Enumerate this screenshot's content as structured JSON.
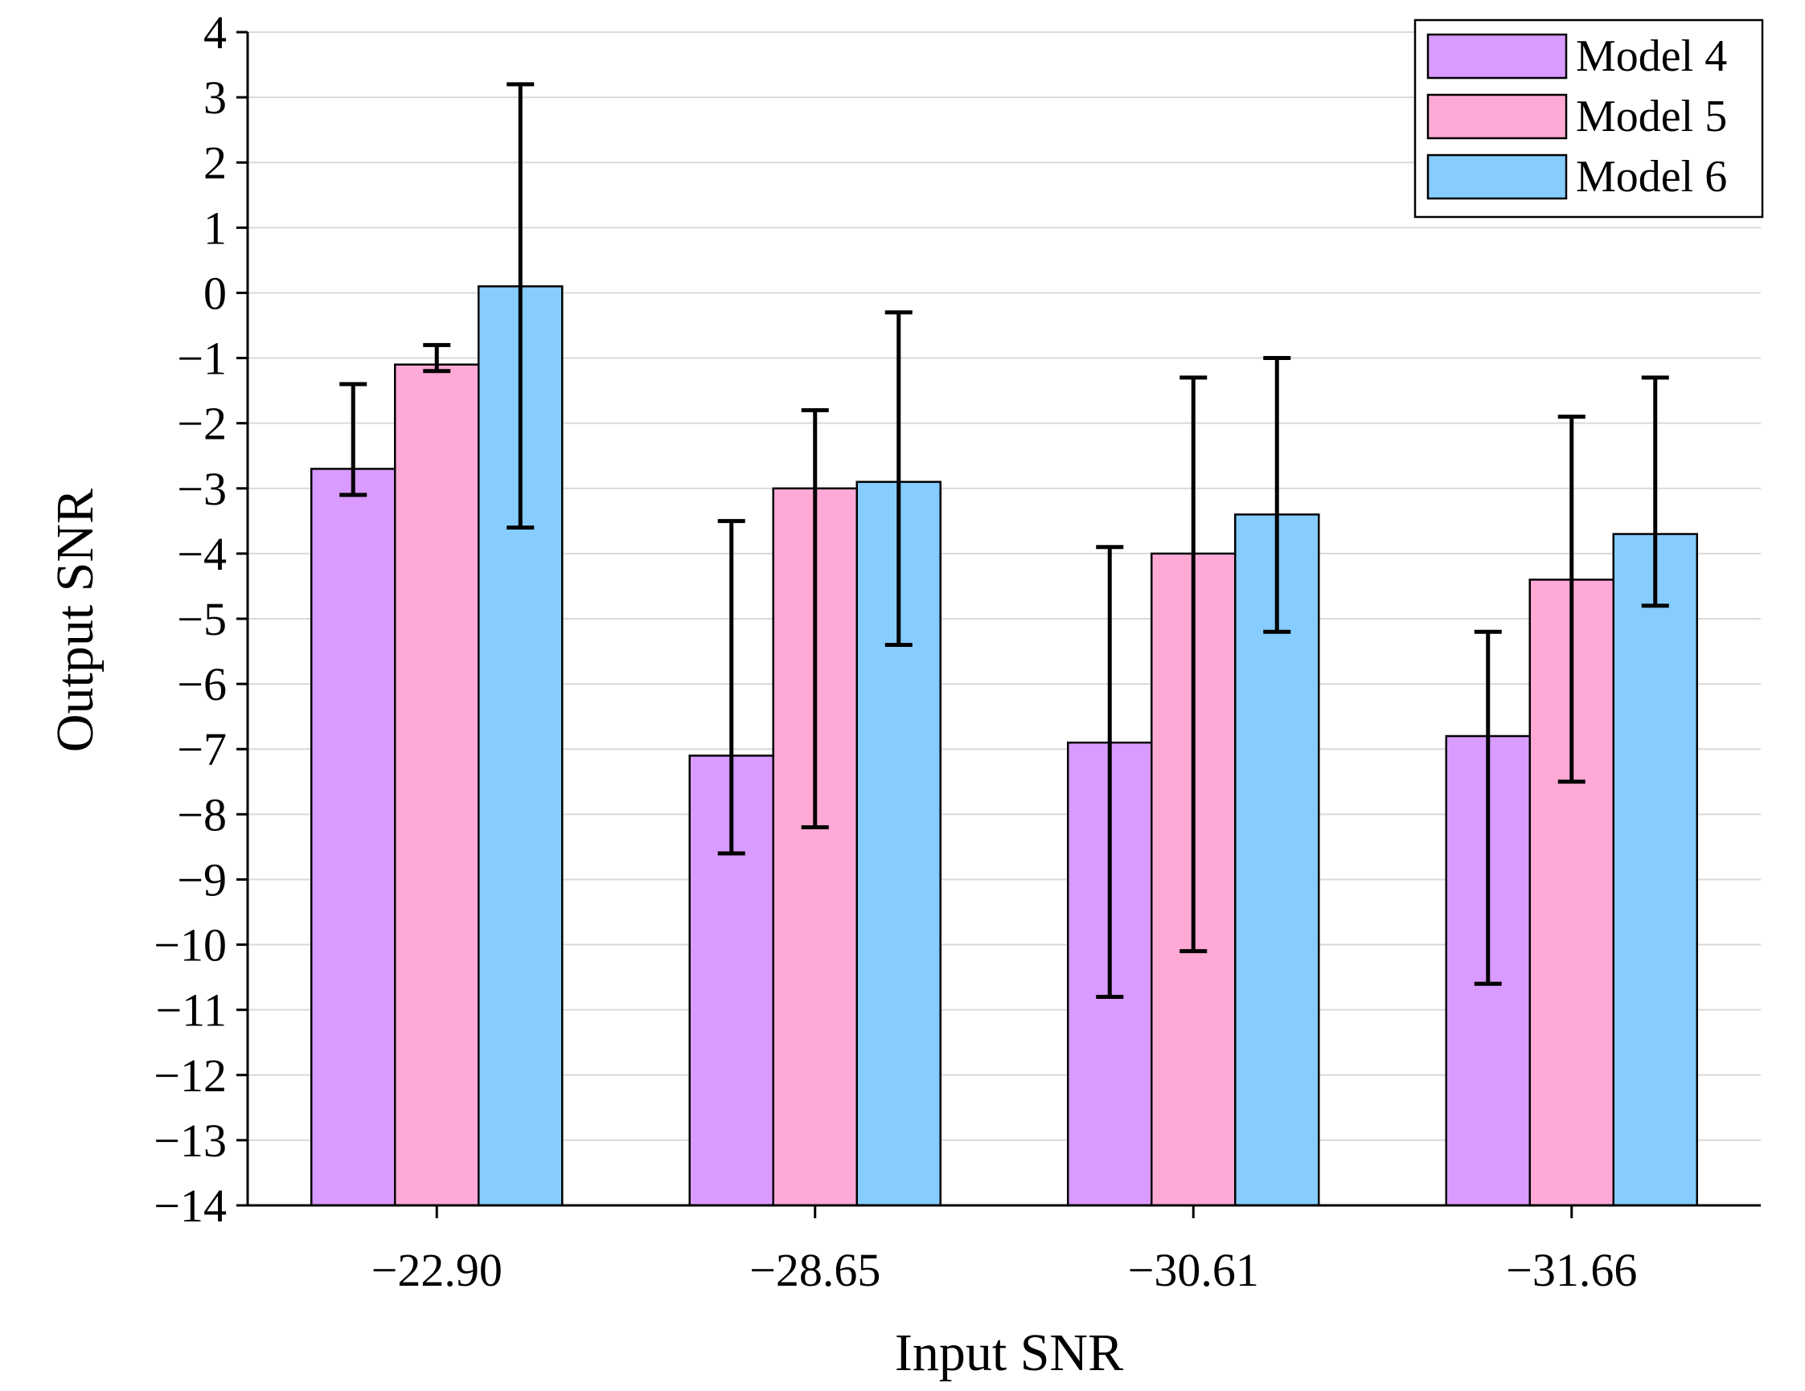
{
  "chart_data": {
    "type": "bar",
    "title": "",
    "xlabel": "Input SNR",
    "ylabel": "Output SNR",
    "categories": [
      "−22.90",
      "−28.65",
      "−30.61",
      "−31.66"
    ],
    "ylim": [
      -14,
      4
    ],
    "yticks": [
      4,
      3,
      2,
      1,
      0,
      -1,
      -2,
      -3,
      -4,
      -5,
      -6,
      -7,
      -8,
      -9,
      -10,
      -11,
      -12,
      -13,
      -14
    ],
    "ytick_labels": [
      "4",
      "3",
      "2",
      "1",
      "0",
      "−1",
      "−2",
      "−3",
      "−4",
      "−5",
      "−6",
      "−7",
      "−8",
      "−9",
      "−10",
      "−11",
      "−12",
      "−13",
      "−14"
    ],
    "grid": true,
    "legend_position": "top-right",
    "series": [
      {
        "name": "Model 4",
        "color": "#d99bff",
        "values": [
          -2.7,
          -7.1,
          -6.9,
          -6.8
        ],
        "error_low": [
          -3.1,
          -8.6,
          -10.8,
          -10.6
        ],
        "error_high": [
          -1.4,
          -3.5,
          -3.9,
          -5.2
        ]
      },
      {
        "name": "Model 5",
        "color": "#ffaad6",
        "values": [
          -1.1,
          -3.0,
          -4.0,
          -4.4
        ],
        "error_low": [
          -1.2,
          -8.2,
          -10.1,
          -7.5
        ],
        "error_high": [
          -0.8,
          -1.8,
          -1.3,
          -1.9
        ]
      },
      {
        "name": "Model 6",
        "color": "#86ccff",
        "values": [
          0.1,
          -2.9,
          -3.4,
          -3.7
        ],
        "error_low": [
          -3.6,
          -5.4,
          -5.2,
          -4.8
        ],
        "error_high": [
          3.2,
          -0.3,
          -1.0,
          -1.3
        ]
      }
    ]
  }
}
